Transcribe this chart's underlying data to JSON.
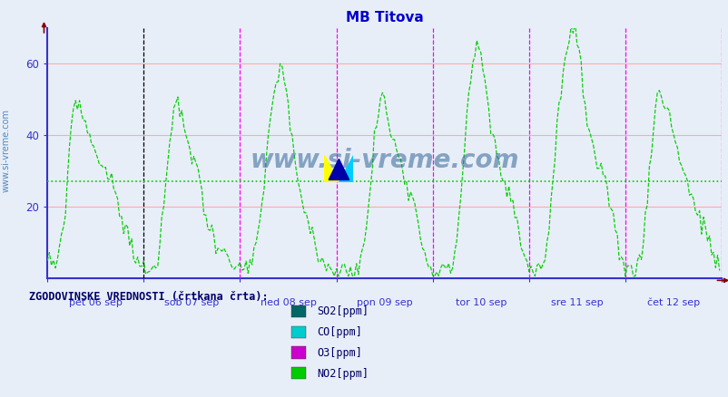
{
  "title": "MB Titova",
  "title_color": "#0000cc",
  "background_color": "#e8eef8",
  "ylim": [
    0,
    70
  ],
  "yticks": [
    20,
    40,
    60
  ],
  "hgrid_color": "#ffaaaa",
  "vgrid_color": "#cccccc",
  "axis_color": "#3333cc",
  "watermark": "www.si-vreme.com",
  "watermark_color": "#336699",
  "hist_label": "ZGODOVINSKE VREDNOSTI (črtkana črta):",
  "x_labels": [
    "pet 06 sep",
    "sob 07 sep",
    "ned 08 sep",
    "pon 09 sep",
    "tor 10 sep",
    "sre 11 sep",
    "čet 12 sep"
  ],
  "vline_colors": [
    "#000000",
    "#ff00ff",
    "#ff00ff",
    "#ff00ff",
    "#ff00ff",
    "#ff00ff",
    "#ff00ff"
  ],
  "hline_color": "#00cc00",
  "hline_value": 27,
  "line_color": "#00cc00",
  "legend_items": [
    {
      "label": "SO2[ppm]",
      "color": "#006666"
    },
    {
      "label": "CO[ppm]",
      "color": "#00cccc"
    },
    {
      "label": "O3[ppm]",
      "color": "#cc00cc"
    },
    {
      "label": "NO2[ppm]",
      "color": "#00cc00"
    }
  ]
}
